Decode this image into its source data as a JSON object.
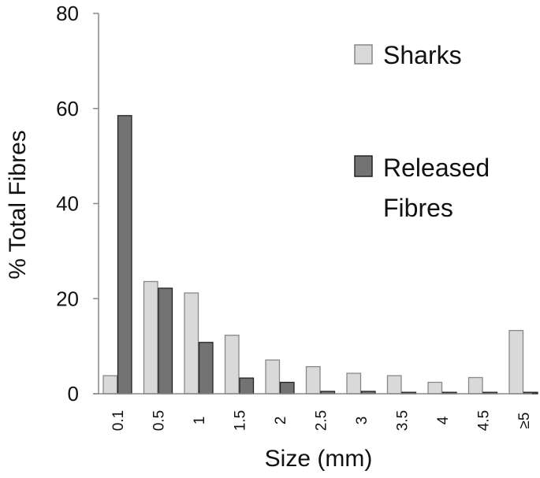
{
  "chart_data": {
    "type": "bar",
    "categories": [
      "0.1",
      "0.5",
      "1",
      "1.5",
      "2",
      "2.5",
      "3",
      "3.5",
      "4",
      "4.5",
      "≥5"
    ],
    "series": [
      {
        "name": "Sharks",
        "color": "#d9d9d9",
        "stroke": "#888888",
        "values": [
          3.8,
          23.6,
          21.2,
          12.3,
          7.1,
          5.7,
          4.3,
          3.8,
          2.4,
          3.4,
          13.3
        ]
      },
      {
        "name": "Released Fibres",
        "color": "#737373",
        "stroke": "#222222",
        "values": [
          58.5,
          22.2,
          10.8,
          3.3,
          2.4,
          0.5,
          0.5,
          0.3,
          0.3,
          0.3,
          0.3
        ]
      }
    ],
    "xlabel": "Size (mm)",
    "ylabel": "% Total Fibres",
    "ylim": [
      0,
      80
    ],
    "yticks": [
      "0",
      "20",
      "40",
      "60",
      "80"
    ],
    "grid": false,
    "legend_position": "top-right",
    "legend": {
      "sharks_label": "Sharks",
      "released_line1": "Released",
      "released_line2": "Fibres"
    }
  }
}
